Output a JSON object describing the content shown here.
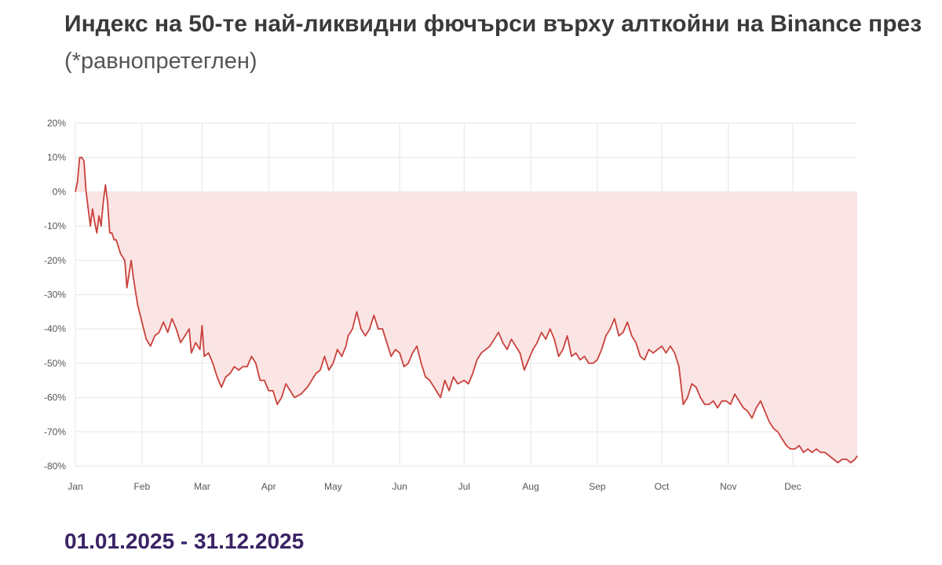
{
  "title": "Индекс на 50-те най-ликвидни фючърси върху алткойни на Binance през",
  "subtitle": "(*равнопретеглен)",
  "date_range": "01.01.2025 - 31.12.2025",
  "colors": {
    "line": "#c9413c",
    "fill": "#fbe3e3",
    "grid": "#e6e6e6",
    "title": "#3a3a3a",
    "date_range": "#3b2364"
  },
  "chart_data": {
    "type": "line",
    "title": "",
    "xlabel": "",
    "ylabel": "",
    "ylim": [
      -80,
      20
    ],
    "y_ticks": [
      "20%",
      "10%",
      "0%",
      "-10%",
      "-20%",
      "-30%",
      "-40%",
      "-50%",
      "-60%",
      "-70%",
      "-80%"
    ],
    "x_ticks": [
      "Jan",
      "Feb",
      "Mar",
      "Apr",
      "May",
      "Jun",
      "Jul",
      "Aug",
      "Sep",
      "Oct",
      "Nov",
      "Dec"
    ],
    "grid": true,
    "fill_to_zero": true,
    "series": [
      {
        "name": "",
        "points": [
          [
            "2025-01-01",
            0
          ],
          [
            "2025-01-02",
            3
          ],
          [
            "2025-01-03",
            10
          ],
          [
            "2025-01-04",
            10
          ],
          [
            "2025-01-05",
            9
          ],
          [
            "2025-01-06",
            0
          ],
          [
            "2025-01-07",
            -5
          ],
          [
            "2025-01-08",
            -10
          ],
          [
            "2025-01-09",
            -5
          ],
          [
            "2025-01-10",
            -9
          ],
          [
            "2025-01-11",
            -12
          ],
          [
            "2025-01-12",
            -7
          ],
          [
            "2025-01-13",
            -10
          ],
          [
            "2025-01-14",
            -3
          ],
          [
            "2025-01-15",
            2
          ],
          [
            "2025-01-16",
            -3
          ],
          [
            "2025-01-17",
            -12
          ],
          [
            "2025-01-18",
            -12
          ],
          [
            "2025-01-19",
            -14
          ],
          [
            "2025-01-20",
            -14
          ],
          [
            "2025-01-22",
            -18
          ],
          [
            "2025-01-24",
            -20
          ],
          [
            "2025-01-25",
            -28
          ],
          [
            "2025-01-27",
            -20
          ],
          [
            "2025-01-28",
            -25
          ],
          [
            "2025-01-30",
            -33
          ],
          [
            "2025-02-01",
            -38
          ],
          [
            "2025-02-03",
            -43
          ],
          [
            "2025-02-05",
            -45
          ],
          [
            "2025-02-07",
            -42
          ],
          [
            "2025-02-09",
            -41
          ],
          [
            "2025-02-11",
            -38
          ],
          [
            "2025-02-13",
            -41
          ],
          [
            "2025-02-15",
            -37
          ],
          [
            "2025-02-17",
            -40
          ],
          [
            "2025-02-19",
            -44
          ],
          [
            "2025-02-21",
            -42
          ],
          [
            "2025-02-23",
            -40
          ],
          [
            "2025-02-24",
            -47
          ],
          [
            "2025-02-26",
            -44
          ],
          [
            "2025-02-28",
            -46
          ],
          [
            "2025-03-01",
            -39
          ],
          [
            "2025-03-02",
            -48
          ],
          [
            "2025-03-04",
            -47
          ],
          [
            "2025-03-06",
            -50
          ],
          [
            "2025-03-08",
            -54
          ],
          [
            "2025-03-10",
            -57
          ],
          [
            "2025-03-12",
            -54
          ],
          [
            "2025-03-14",
            -53
          ],
          [
            "2025-03-16",
            -51
          ],
          [
            "2025-03-18",
            -52
          ],
          [
            "2025-03-20",
            -51
          ],
          [
            "2025-03-22",
            -51
          ],
          [
            "2025-03-24",
            -48
          ],
          [
            "2025-03-26",
            -50
          ],
          [
            "2025-03-28",
            -55
          ],
          [
            "2025-03-30",
            -55
          ],
          [
            "2025-04-01",
            -58
          ],
          [
            "2025-04-03",
            -58
          ],
          [
            "2025-04-05",
            -62
          ],
          [
            "2025-04-07",
            -60
          ],
          [
            "2025-04-09",
            -56
          ],
          [
            "2025-04-11",
            -58
          ],
          [
            "2025-04-13",
            -60
          ],
          [
            "2025-04-16",
            -59
          ],
          [
            "2025-04-19",
            -57
          ],
          [
            "2025-04-21",
            -55
          ],
          [
            "2025-04-23",
            -53
          ],
          [
            "2025-04-25",
            -52
          ],
          [
            "2025-04-27",
            -48
          ],
          [
            "2025-04-29",
            -52
          ],
          [
            "2025-05-01",
            -50
          ],
          [
            "2025-05-03",
            -46
          ],
          [
            "2025-05-05",
            -48
          ],
          [
            "2025-05-07",
            -45
          ],
          [
            "2025-05-08",
            -42
          ],
          [
            "2025-05-10",
            -40
          ],
          [
            "2025-05-12",
            -35
          ],
          [
            "2025-05-14",
            -40
          ],
          [
            "2025-05-16",
            -42
          ],
          [
            "2025-05-18",
            -40
          ],
          [
            "2025-05-20",
            -36
          ],
          [
            "2025-05-22",
            -40
          ],
          [
            "2025-05-24",
            -40
          ],
          [
            "2025-05-26",
            -44
          ],
          [
            "2025-05-28",
            -48
          ],
          [
            "2025-05-30",
            -46
          ],
          [
            "2025-06-01",
            -47
          ],
          [
            "2025-06-03",
            -51
          ],
          [
            "2025-06-05",
            -50
          ],
          [
            "2025-06-07",
            -47
          ],
          [
            "2025-06-09",
            -45
          ],
          [
            "2025-06-11",
            -50
          ],
          [
            "2025-06-13",
            -54
          ],
          [
            "2025-06-15",
            -55
          ],
          [
            "2025-06-17",
            -57
          ],
          [
            "2025-06-20",
            -60
          ],
          [
            "2025-06-22",
            -55
          ],
          [
            "2025-06-24",
            -58
          ],
          [
            "2025-06-26",
            -54
          ],
          [
            "2025-06-28",
            -56
          ],
          [
            "2025-07-01",
            -55
          ],
          [
            "2025-07-03",
            -56
          ],
          [
            "2025-07-05",
            -53
          ],
          [
            "2025-07-07",
            -49
          ],
          [
            "2025-07-09",
            -47
          ],
          [
            "2025-07-11",
            -46
          ],
          [
            "2025-07-13",
            -45
          ],
          [
            "2025-07-15",
            -43
          ],
          [
            "2025-07-17",
            -41
          ],
          [
            "2025-07-19",
            -44
          ],
          [
            "2025-07-21",
            -46
          ],
          [
            "2025-07-23",
            -43
          ],
          [
            "2025-07-25",
            -45
          ],
          [
            "2025-07-27",
            -47
          ],
          [
            "2025-07-29",
            -52
          ],
          [
            "2025-07-31",
            -49
          ],
          [
            "2025-08-02",
            -46
          ],
          [
            "2025-08-04",
            -44
          ],
          [
            "2025-08-06",
            -41
          ],
          [
            "2025-08-08",
            -43
          ],
          [
            "2025-08-10",
            -40
          ],
          [
            "2025-08-12",
            -43
          ],
          [
            "2025-08-14",
            -48
          ],
          [
            "2025-08-16",
            -46
          ],
          [
            "2025-08-18",
            -42
          ],
          [
            "2025-08-20",
            -48
          ],
          [
            "2025-08-22",
            -47
          ],
          [
            "2025-08-24",
            -49
          ],
          [
            "2025-08-26",
            -48
          ],
          [
            "2025-08-28",
            -50
          ],
          [
            "2025-08-30",
            -50
          ],
          [
            "2025-09-01",
            -49
          ],
          [
            "2025-09-03",
            -46
          ],
          [
            "2025-09-05",
            -42
          ],
          [
            "2025-09-07",
            -40
          ],
          [
            "2025-09-09",
            -37
          ],
          [
            "2025-09-11",
            -42
          ],
          [
            "2025-09-13",
            -41
          ],
          [
            "2025-09-15",
            -38
          ],
          [
            "2025-09-17",
            -42
          ],
          [
            "2025-09-19",
            -44
          ],
          [
            "2025-09-21",
            -48
          ],
          [
            "2025-09-23",
            -49
          ],
          [
            "2025-09-25",
            -46
          ],
          [
            "2025-09-27",
            -47
          ],
          [
            "2025-09-29",
            -46
          ],
          [
            "2025-10-01",
            -45
          ],
          [
            "2025-10-03",
            -47
          ],
          [
            "2025-10-05",
            -45
          ],
          [
            "2025-10-07",
            -47
          ],
          [
            "2025-10-09",
            -51
          ],
          [
            "2025-10-11",
            -62
          ],
          [
            "2025-10-13",
            -60
          ],
          [
            "2025-10-15",
            -56
          ],
          [
            "2025-10-17",
            -57
          ],
          [
            "2025-10-19",
            -60
          ],
          [
            "2025-10-21",
            -62
          ],
          [
            "2025-10-23",
            -62
          ],
          [
            "2025-10-25",
            -61
          ],
          [
            "2025-10-27",
            -63
          ],
          [
            "2025-10-29",
            -61
          ],
          [
            "2025-10-31",
            -61
          ],
          [
            "2025-11-02",
            -62
          ],
          [
            "2025-11-04",
            -59
          ],
          [
            "2025-11-06",
            -61
          ],
          [
            "2025-11-08",
            -63
          ],
          [
            "2025-11-10",
            -64
          ],
          [
            "2025-11-12",
            -66
          ],
          [
            "2025-11-14",
            -63
          ],
          [
            "2025-11-16",
            -61
          ],
          [
            "2025-11-18",
            -64
          ],
          [
            "2025-11-20",
            -67
          ],
          [
            "2025-11-22",
            -69
          ],
          [
            "2025-11-24",
            -70
          ],
          [
            "2025-11-26",
            -72
          ],
          [
            "2025-11-28",
            -74
          ],
          [
            "2025-11-30",
            -75
          ],
          [
            "2025-12-02",
            -75
          ],
          [
            "2025-12-04",
            -74
          ],
          [
            "2025-12-06",
            -76
          ],
          [
            "2025-12-08",
            -75
          ],
          [
            "2025-12-10",
            -76
          ],
          [
            "2025-12-12",
            -75
          ],
          [
            "2025-12-14",
            -76
          ],
          [
            "2025-12-16",
            -76
          ],
          [
            "2025-12-18",
            -77
          ],
          [
            "2025-12-20",
            -78
          ],
          [
            "2025-12-22",
            -79
          ],
          [
            "2025-12-24",
            -78
          ],
          [
            "2025-12-26",
            -78
          ],
          [
            "2025-12-28",
            -79
          ],
          [
            "2025-12-30",
            -78
          ],
          [
            "2025-12-31",
            -77
          ]
        ]
      }
    ]
  }
}
